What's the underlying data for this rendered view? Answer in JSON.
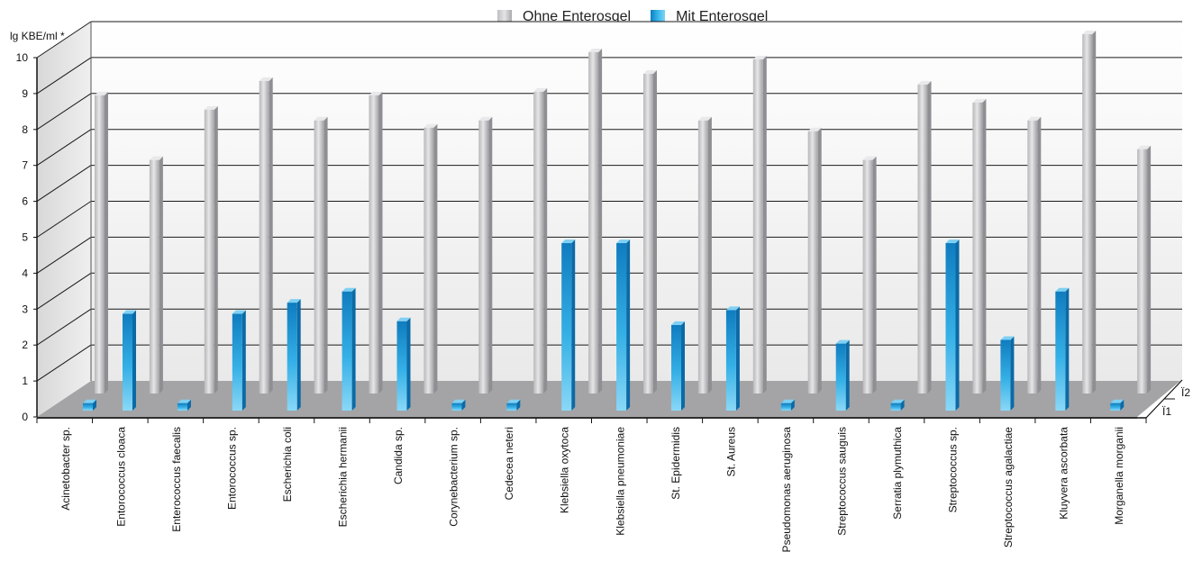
{
  "chart_data": {
    "type": "bar",
    "ylabel": "lg KBE/ml *",
    "ylim": [
      0,
      10
    ],
    "yticks": [
      "0",
      "1",
      "2",
      "3",
      "4",
      "5",
      "6",
      "7",
      "8",
      "9",
      "10"
    ],
    "legend_position": "top-center",
    "depth_labels": [
      "Ï1",
      "Ï2"
    ],
    "categories": [
      "Acinetobacter sp.",
      "Entorococcus cloaca",
      "Enterococcus faecalis",
      "Entorococcus sp.",
      "Escherichia coli",
      "Escherichia hermanii",
      "Candida sp.",
      "Corynebacterium sp.",
      "Cedecea neteri",
      "Klebsiella oxytoca",
      "Klebsiella pneumoniae",
      "St. Epidermidis",
      "St. Aureus",
      "Pseudomonas aeruginosa",
      "Streptococcus sauguis",
      "Serratia plymuthica",
      "Streptococcus sp.",
      "Streptococcus agalactiae",
      "Kluyvera ascorbata",
      "Morganella morganii"
    ],
    "series": [
      {
        "name": "Ohne Enterosgel",
        "values": [
          8.3,
          6.5,
          7.9,
          8.7,
          7.6,
          8.3,
          7.4,
          7.6,
          8.4,
          9.5,
          8.9,
          7.6,
          9.3,
          7.3,
          6.5,
          8.6,
          8.1,
          7.6,
          10.0,
          6.8
        ]
      },
      {
        "name": "Mit Enterosgel",
        "values": [
          0.2,
          2.6,
          0.2,
          2.6,
          2.9,
          3.2,
          2.4,
          0.2,
          0.2,
          4.5,
          4.5,
          2.3,
          2.7,
          0.2,
          1.8,
          0.2,
          4.5,
          1.9,
          3.2,
          0.2
        ]
      }
    ],
    "colors": {
      "series1": "#c4c4c6",
      "series2": "#1e9ad8",
      "floor": "#a4a4a6",
      "wall": "#f2f2f2",
      "grid": "#1a1a1a"
    }
  }
}
